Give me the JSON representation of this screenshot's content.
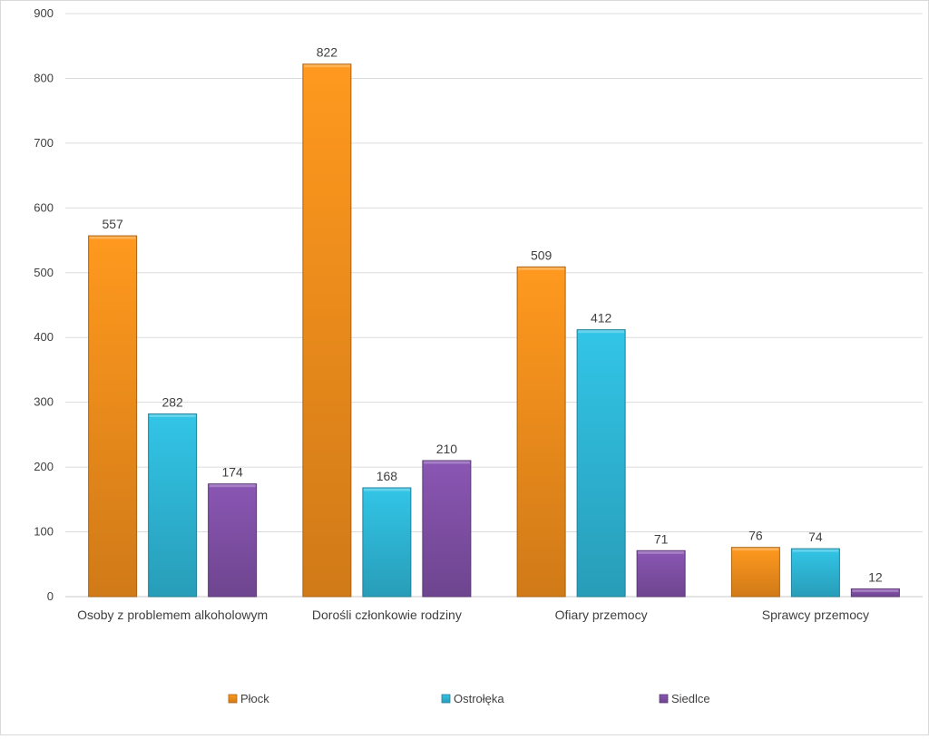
{
  "chart_data": {
    "type": "bar",
    "title": "",
    "xlabel": "",
    "ylabel": "",
    "ylim": [
      0,
      900
    ],
    "yticks": [
      0,
      100,
      200,
      300,
      400,
      500,
      600,
      700,
      800,
      900
    ],
    "grid": true,
    "legend_position": "bottom",
    "categories": [
      "Osoby z problemem alkoholowym",
      "Dorośli członkowie rodziny",
      "Ofiary przemocy",
      "Sprawcy przemocy"
    ],
    "series": [
      {
        "name": "Płock",
        "color": "#f28e1c",
        "values": [
          557,
          822,
          509,
          76
        ]
      },
      {
        "name": "Ostrołęka",
        "color": "#2eb6d6",
        "values": [
          282,
          168,
          412,
          74
        ]
      },
      {
        "name": "Siedlce",
        "color": "#8050a6",
        "values": [
          174,
          210,
          71,
          12
        ]
      }
    ]
  }
}
